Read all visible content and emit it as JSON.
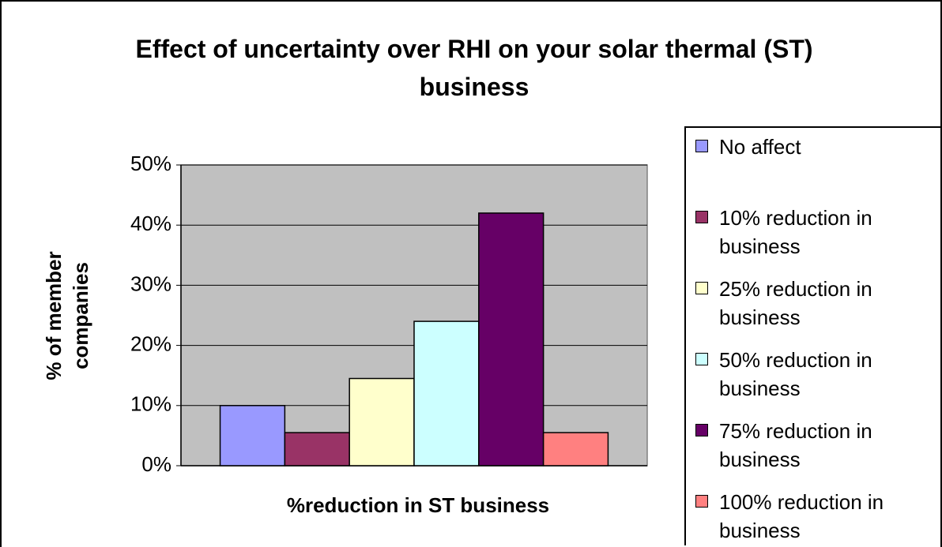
{
  "chart_data": {
    "type": "bar",
    "title": "Effect of uncertainty over RHI on your solar thermal (ST) business",
    "x_label": "%reduction in ST business",
    "y_label": "% of member companies",
    "categories": [
      null
    ],
    "series": [
      {
        "name": "No affect",
        "color": "#9999ff",
        "values": [
          10
        ]
      },
      {
        "name": "10% reduction in business",
        "color": "#993366",
        "values": [
          5.5
        ]
      },
      {
        "name": "25% reduction in business",
        "color": "#ffffcc",
        "values": [
          14.5
        ]
      },
      {
        "name": "50% reduction in business",
        "color": "#ccffff",
        "values": [
          24
        ]
      },
      {
        "name": "75% reduction in business",
        "color": "#660066",
        "values": [
          42
        ]
      },
      {
        "name": "100% reduction in business",
        "color": "#ff8080",
        "values": [
          5.5
        ]
      }
    ],
    "ylim": [
      0,
      50
    ],
    "yticks": [
      {
        "value": 0,
        "label": "0%"
      },
      {
        "value": 10,
        "label": "10%"
      },
      {
        "value": 20,
        "label": "20%"
      },
      {
        "value": 30,
        "label": "30%"
      },
      {
        "value": 40,
        "label": "40%"
      },
      {
        "value": 50,
        "label": "50%"
      }
    ],
    "grid": true,
    "plot_background": "#c0c0c0",
    "legend": "right"
  }
}
